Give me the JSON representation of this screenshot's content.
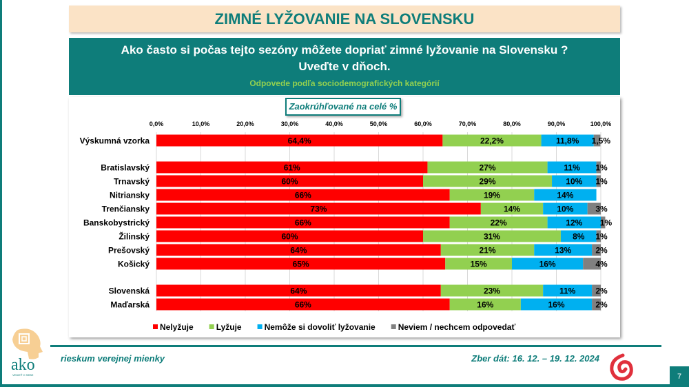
{
  "title": "ZIMNÉ LYŽOVANIE NA SLOVENSKU",
  "question": "Ako často si počas tejto sezóny  môžete dopriať zimné lyžovanie na Slovensku ? Uveďte v dňoch.",
  "subtitle": "Odpovede podľa sociodemografických kategórií",
  "rounding_note": "Zaokrúhľované na celé %",
  "footer": {
    "left": "rieskum verejnej mienky",
    "right": "Zber dát: 16. 12. – 19. 12. 2024",
    "page": "7",
    "logo_text": "ako",
    "logo_tagline": "VEDIEŤ O SEBE"
  },
  "chart_data": {
    "type": "bar",
    "orientation": "horizontal",
    "stacked": true,
    "xlim": [
      0,
      100
    ],
    "ticks": [
      "0,0%",
      "10,0%",
      "20,0%",
      "30,0%",
      "40,0%",
      "50,0%",
      "60,0%",
      "70,0%",
      "80,0%",
      "90,0%",
      "100,0%"
    ],
    "grid": true,
    "legend_position": "bottom",
    "series": [
      {
        "name": "Nelyžuje",
        "color": "#ff0000"
      },
      {
        "name": "Lyžuje",
        "color": "#92d050"
      },
      {
        "name": "Nemôže si dovoliť lyžovanie",
        "color": "#00b0f0"
      },
      {
        "name": "Neviem / nechcem odpovedať",
        "color": "#808080"
      }
    ],
    "rows": [
      {
        "label": "Výskumná vzorka",
        "values": [
          64.4,
          22.2,
          11.8,
          1.5
        ],
        "labels": [
          "64,4%",
          "22,2%",
          "11,8%",
          "1,5%"
        ],
        "group": 0
      },
      {
        "label": "Bratislavský",
        "values": [
          61,
          27,
          11,
          1
        ],
        "labels": [
          "61%",
          "27%",
          "11%",
          "1%"
        ],
        "group": 1
      },
      {
        "label": "Trnavský",
        "values": [
          60,
          29,
          10,
          1
        ],
        "labels": [
          "60%",
          "29%",
          "10%",
          "1%"
        ],
        "group": 1
      },
      {
        "label": "Nitriansky",
        "values": [
          66,
          19,
          14,
          0
        ],
        "labels": [
          "66%",
          "19%",
          "14%",
          ""
        ],
        "group": 1
      },
      {
        "label": "Trenčiansky",
        "values": [
          73,
          14,
          10,
          3
        ],
        "labels": [
          "73%",
          "14%",
          "10%",
          "3%"
        ],
        "group": 1
      },
      {
        "label": "Banskobystrický",
        "values": [
          66,
          22,
          12,
          1
        ],
        "labels": [
          "66%",
          "22%",
          "12%",
          "1%"
        ],
        "group": 1
      },
      {
        "label": "Žilinský",
        "values": [
          60,
          31,
          8,
          1
        ],
        "labels": [
          "60%",
          "31%",
          "8%",
          "1%"
        ],
        "group": 1
      },
      {
        "label": "Prešovský",
        "values": [
          64,
          21,
          13,
          2
        ],
        "labels": [
          "64%",
          "21%",
          "13%",
          "2%"
        ],
        "group": 1
      },
      {
        "label": "Košický",
        "values": [
          65,
          15,
          16,
          4
        ],
        "labels": [
          "65%",
          "15%",
          "16%",
          "4%"
        ],
        "group": 1
      },
      {
        "label": "Slovenská",
        "values": [
          64,
          23,
          11,
          2
        ],
        "labels": [
          "64%",
          "23%",
          "11%",
          "2%"
        ],
        "group": 2
      },
      {
        "label": "Maďarská",
        "values": [
          66,
          16,
          16,
          2
        ],
        "labels": [
          "66%",
          "16%",
          "16%",
          "2%"
        ],
        "group": 2
      }
    ]
  }
}
